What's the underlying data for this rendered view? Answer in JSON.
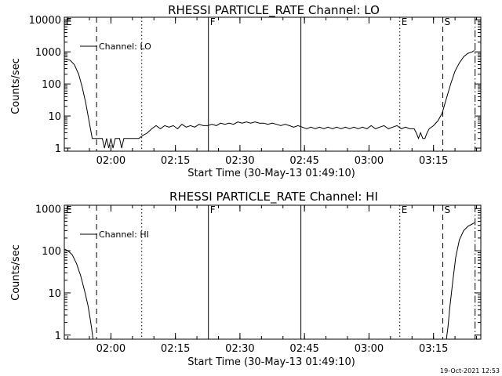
{
  "footer": {
    "timestamp": "19-Oct-2021 12:53"
  },
  "chart_data": [
    {
      "type": "line",
      "title": "RHESSI PARTICLE_RATE Channel: LO",
      "xlabel": "Start Time (30-May-13 01:49:10)",
      "ylabel": "Counts/sec",
      "y_scale": "log",
      "ylim": [
        0.8,
        12000
      ],
      "xlim": [
        "01:49:10",
        "03:26:00"
      ],
      "x_ticks": [
        "02:00",
        "02:15",
        "02:30",
        "02:45",
        "03:00",
        "03:15"
      ],
      "y_ticks": [
        "1",
        "10",
        "100",
        "1000",
        "10000"
      ],
      "legend": {
        "label": "Channel: LO",
        "position": "top-left"
      },
      "markers": [
        {
          "time": "01:49:10",
          "label": "E",
          "style": "solid"
        },
        {
          "time": "01:56:40",
          "label": "",
          "style": "dashed"
        },
        {
          "time": "02:07:10",
          "label": "",
          "style": "dotted"
        },
        {
          "time": "02:22:40",
          "label": "F",
          "style": "solid"
        },
        {
          "time": "02:44:10",
          "label": "",
          "style": "solid"
        },
        {
          "time": "03:07:10",
          "label": "E",
          "style": "dotted"
        },
        {
          "time": "03:17:10",
          "label": "S",
          "style": "dashed"
        },
        {
          "time": "03:24:40",
          "label": "",
          "style": "dashdot"
        }
      ],
      "series": [
        {
          "name": "Channel: LO",
          "points": [
            [
              "01:49:10",
              600
            ],
            [
              "01:50:30",
              550
            ],
            [
              "01:51:30",
              400
            ],
            [
              "01:52:30",
              200
            ],
            [
              "01:53:20",
              80
            ],
            [
              "01:54:10",
              25
            ],
            [
              "01:55:00",
              6
            ],
            [
              "01:55:40",
              2
            ],
            [
              "01:57:00",
              2
            ],
            [
              "01:58:00",
              2
            ],
            [
              "01:58:30",
              1
            ],
            [
              "01:59:00",
              2
            ],
            [
              "01:59:30",
              1
            ],
            [
              "02:00:00",
              2
            ],
            [
              "02:00:30",
              1
            ],
            [
              "02:01:00",
              2
            ],
            [
              "02:02:00",
              2
            ],
            [
              "02:02:30",
              1
            ],
            [
              "02:03:00",
              2
            ],
            [
              "02:05:00",
              2
            ],
            [
              "02:06:30",
              2
            ],
            [
              "02:07:30",
              2.5
            ],
            [
              "02:08:30",
              3
            ],
            [
              "02:09:30",
              4
            ],
            [
              "02:10:30",
              5
            ],
            [
              "02:11:30",
              4
            ],
            [
              "02:12:30",
              5
            ],
            [
              "02:13:30",
              4.5
            ],
            [
              "02:14:30",
              5
            ],
            [
              "02:15:30",
              4
            ],
            [
              "02:16:30",
              5.5
            ],
            [
              "02:17:30",
              4.5
            ],
            [
              "02:18:30",
              5
            ],
            [
              "02:19:30",
              4.5
            ],
            [
              "02:20:30",
              5.5
            ],
            [
              "02:21:30",
              5
            ],
            [
              "02:22:30",
              5
            ],
            [
              "02:23:30",
              5.5
            ],
            [
              "02:24:30",
              5
            ],
            [
              "02:25:30",
              6
            ],
            [
              "02:26:30",
              5.5
            ],
            [
              "02:27:30",
              6
            ],
            [
              "02:28:30",
              5.5
            ],
            [
              "02:29:30",
              6.5
            ],
            [
              "02:30:30",
              6
            ],
            [
              "02:31:30",
              6.5
            ],
            [
              "02:32:30",
              6
            ],
            [
              "02:33:30",
              6.5
            ],
            [
              "02:34:30",
              6
            ],
            [
              "02:35:30",
              6
            ],
            [
              "02:36:30",
              5.5
            ],
            [
              "02:37:30",
              6
            ],
            [
              "02:38:30",
              5.5
            ],
            [
              "02:39:30",
              5
            ],
            [
              "02:40:30",
              5.5
            ],
            [
              "02:41:30",
              5
            ],
            [
              "02:42:30",
              4.5
            ],
            [
              "02:43:30",
              5
            ],
            [
              "02:44:30",
              4.5
            ],
            [
              "02:45:30",
              4
            ],
            [
              "02:46:30",
              4.5
            ],
            [
              "02:47:30",
              4
            ],
            [
              "02:48:30",
              4.5
            ],
            [
              "02:49:30",
              4
            ],
            [
              "02:50:30",
              4.5
            ],
            [
              "02:51:30",
              4
            ],
            [
              "02:52:30",
              4.5
            ],
            [
              "02:53:30",
              4
            ],
            [
              "02:54:30",
              4.5
            ],
            [
              "02:55:30",
              4
            ],
            [
              "02:56:30",
              4.5
            ],
            [
              "02:57:30",
              4
            ],
            [
              "02:58:30",
              4.5
            ],
            [
              "02:59:30",
              4
            ],
            [
              "03:00:30",
              5
            ],
            [
              "03:01:30",
              4
            ],
            [
              "03:02:30",
              4.5
            ],
            [
              "03:03:30",
              5
            ],
            [
              "03:04:30",
              4
            ],
            [
              "03:05:30",
              4.5
            ],
            [
              "03:06:30",
              5
            ],
            [
              "03:07:30",
              4
            ],
            [
              "03:08:30",
              4.5
            ],
            [
              "03:09:30",
              4
            ],
            [
              "03:10:30",
              4
            ],
            [
              "03:11:00",
              3
            ],
            [
              "03:11:30",
              2
            ],
            [
              "03:12:00",
              3
            ],
            [
              "03:12:30",
              2
            ],
            [
              "03:13:00",
              2
            ],
            [
              "03:13:30",
              3
            ],
            [
              "03:14:00",
              4
            ],
            [
              "03:15:00",
              5
            ],
            [
              "03:16:00",
              7
            ],
            [
              "03:17:00",
              12
            ],
            [
              "03:18:00",
              35
            ],
            [
              "03:19:00",
              100
            ],
            [
              "03:20:00",
              250
            ],
            [
              "03:21:00",
              450
            ],
            [
              "03:22:00",
              700
            ],
            [
              "03:23:00",
              900
            ],
            [
              "03:24:00",
              1000
            ],
            [
              "03:24:30",
              1100
            ]
          ]
        }
      ]
    },
    {
      "type": "line",
      "title": "RHESSI PARTICLE_RATE Channel: HI",
      "xlabel": "Start Time (30-May-13 01:49:10)",
      "ylabel": "Counts/sec",
      "y_scale": "log",
      "ylim": [
        0.8,
        1200
      ],
      "xlim": [
        "01:49:10",
        "03:26:00"
      ],
      "x_ticks": [
        "02:00",
        "02:15",
        "02:30",
        "02:45",
        "03:00",
        "03:15"
      ],
      "y_ticks": [
        "1",
        "10",
        "100",
        "1000"
      ],
      "legend": {
        "label": "Channel: HI",
        "position": "top-left"
      },
      "markers": [
        {
          "time": "01:49:10",
          "label": "E",
          "style": "solid"
        },
        {
          "time": "01:56:40",
          "label": "",
          "style": "dashed"
        },
        {
          "time": "02:07:10",
          "label": "",
          "style": "dotted"
        },
        {
          "time": "02:22:40",
          "label": "F",
          "style": "solid"
        },
        {
          "time": "02:44:10",
          "label": "",
          "style": "solid"
        },
        {
          "time": "03:07:10",
          "label": "E",
          "style": "dotted"
        },
        {
          "time": "03:17:10",
          "label": "S",
          "style": "dashed"
        },
        {
          "time": "03:24:40",
          "label": "",
          "style": "dashdot"
        }
      ],
      "series": [
        {
          "name": "Channel: HI",
          "points": [
            [
              "01:49:10",
              110
            ],
            [
              "01:50:00",
              100
            ],
            [
              "01:51:00",
              80
            ],
            [
              "01:52:00",
              50
            ],
            [
              "01:53:00",
              25
            ],
            [
              "01:54:00",
              10
            ],
            [
              "01:54:40",
              5
            ],
            [
              "01:55:10",
              2.5
            ],
            [
              "01:55:30",
              1.5
            ],
            [
              "01:55:50",
              0.8
            ]
          ]
        },
        {
          "name": "Channel: HI",
          "points": [
            [
              "03:18:00",
              0.8
            ],
            [
              "03:18:20",
              1.5
            ],
            [
              "03:18:50",
              5
            ],
            [
              "03:19:30",
              20
            ],
            [
              "03:20:10",
              70
            ],
            [
              "03:21:00",
              180
            ],
            [
              "03:22:00",
              300
            ],
            [
              "03:23:00",
              380
            ],
            [
              "03:24:00",
              430
            ],
            [
              "03:24:30",
              460
            ]
          ]
        }
      ]
    }
  ]
}
